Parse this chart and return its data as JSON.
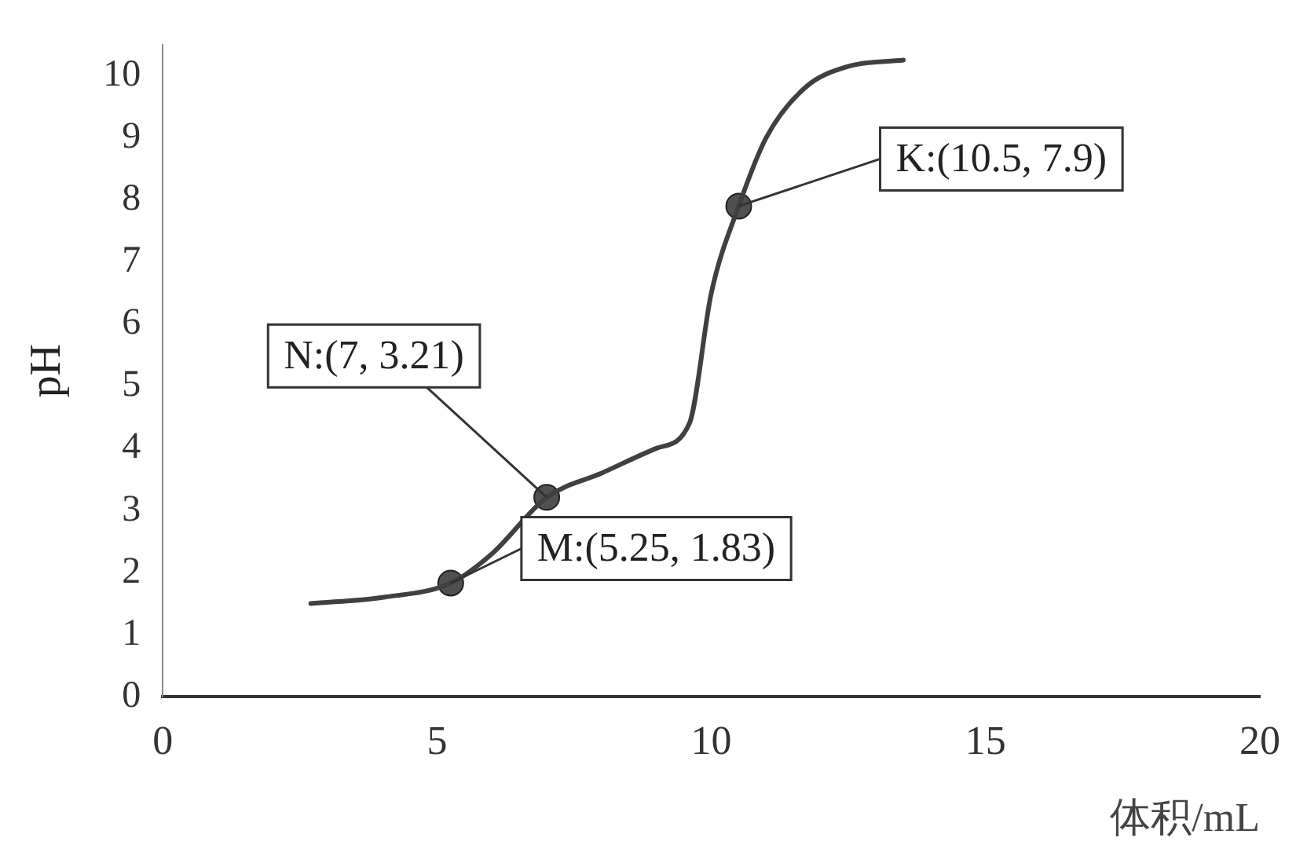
{
  "chart_data": {
    "type": "line",
    "xlabel": "体积/mL",
    "ylabel": "pH",
    "xlim": [
      0,
      20
    ],
    "xticks": [
      0,
      5,
      10,
      15,
      20
    ],
    "ylim": [
      0,
      10.5
    ],
    "yticks": [
      0,
      1,
      2,
      3,
      4,
      5,
      6,
      7,
      8,
      9,
      10
    ],
    "grid": false,
    "legend": false,
    "series": [
      {
        "color": "#404040",
        "marker": "none",
        "x": [
          2.7,
          4,
          5.25,
          6,
          7,
          8,
          9,
          9.6,
          10,
          10.5,
          11,
          11.7,
          12.5,
          13.5
        ],
        "values": [
          1.5,
          1.6,
          1.83,
          2.3,
          3.21,
          3.6,
          4.0,
          4.4,
          6.5,
          7.9,
          9.0,
          9.8,
          10.15,
          10.25
        ]
      },
      {
        "type": "scatter",
        "color": "#505050",
        "marker": "circle",
        "x": [
          5.25,
          7,
          10.5
        ],
        "values": [
          1.83,
          3.21,
          7.9
        ]
      }
    ],
    "annotations": [
      {
        "text": "M:(5.25, 1.83)",
        "x": 5.25,
        "y": 1.83
      },
      {
        "text": "N:(7, 3.21)",
        "x": 7,
        "y": 3.21
      },
      {
        "text": "K:(10.5, 7.9)",
        "x": 10.5,
        "y": 7.9
      }
    ]
  }
}
